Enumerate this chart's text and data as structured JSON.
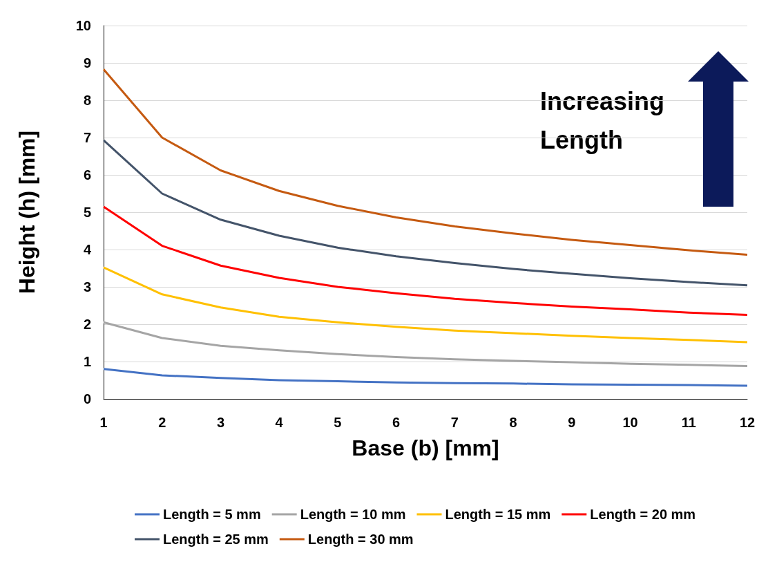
{
  "chart_data": {
    "type": "line",
    "xlabel": "Base (b) [mm]",
    "ylabel": "Height (h) [mm]",
    "categories": [
      "1",
      "2",
      "3",
      "4",
      "5",
      "6",
      "7",
      "8",
      "9",
      "10",
      "11",
      "12"
    ],
    "series": [
      {
        "name": "Length = 5 mm",
        "color": "#4472c4",
        "values": [
          0.8,
          0.63,
          0.56,
          0.5,
          0.47,
          0.44,
          0.42,
          0.41,
          0.39,
          0.38,
          0.37,
          0.35
        ]
      },
      {
        "name": "Length = 10 mm",
        "color": "#a5a5a5",
        "values": [
          2.05,
          1.63,
          1.42,
          1.3,
          1.2,
          1.12,
          1.06,
          1.02,
          0.98,
          0.94,
          0.91,
          0.88
        ]
      },
      {
        "name": "Length = 15 mm",
        "color": "#ffc000",
        "values": [
          3.52,
          2.8,
          2.45,
          2.2,
          2.05,
          1.93,
          1.83,
          1.76,
          1.69,
          1.63,
          1.58,
          1.52
        ]
      },
      {
        "name": "Length = 20 mm",
        "color": "#ff0000",
        "values": [
          5.15,
          4.1,
          3.57,
          3.24,
          3.0,
          2.83,
          2.68,
          2.57,
          2.47,
          2.4,
          2.31,
          2.25
        ]
      },
      {
        "name": "Length = 25 mm",
        "color": "#44546a",
        "values": [
          6.93,
          5.5,
          4.8,
          4.37,
          4.05,
          3.82,
          3.64,
          3.48,
          3.35,
          3.23,
          3.13,
          3.04
        ]
      },
      {
        "name": "Length = 30 mm",
        "color": "#c55a11",
        "values": [
          8.83,
          7.0,
          6.12,
          5.57,
          5.17,
          4.86,
          4.62,
          4.43,
          4.26,
          4.12,
          3.98,
          3.86
        ]
      }
    ],
    "ylim": [
      0,
      10
    ],
    "yticks": [
      0,
      1,
      2,
      3,
      4,
      5,
      6,
      7,
      8,
      9,
      10
    ],
    "annotations": [
      "Increasing Length"
    ],
    "grid": "y",
    "legend": "bottom",
    "marker": "none",
    "line_style": "solid"
  }
}
